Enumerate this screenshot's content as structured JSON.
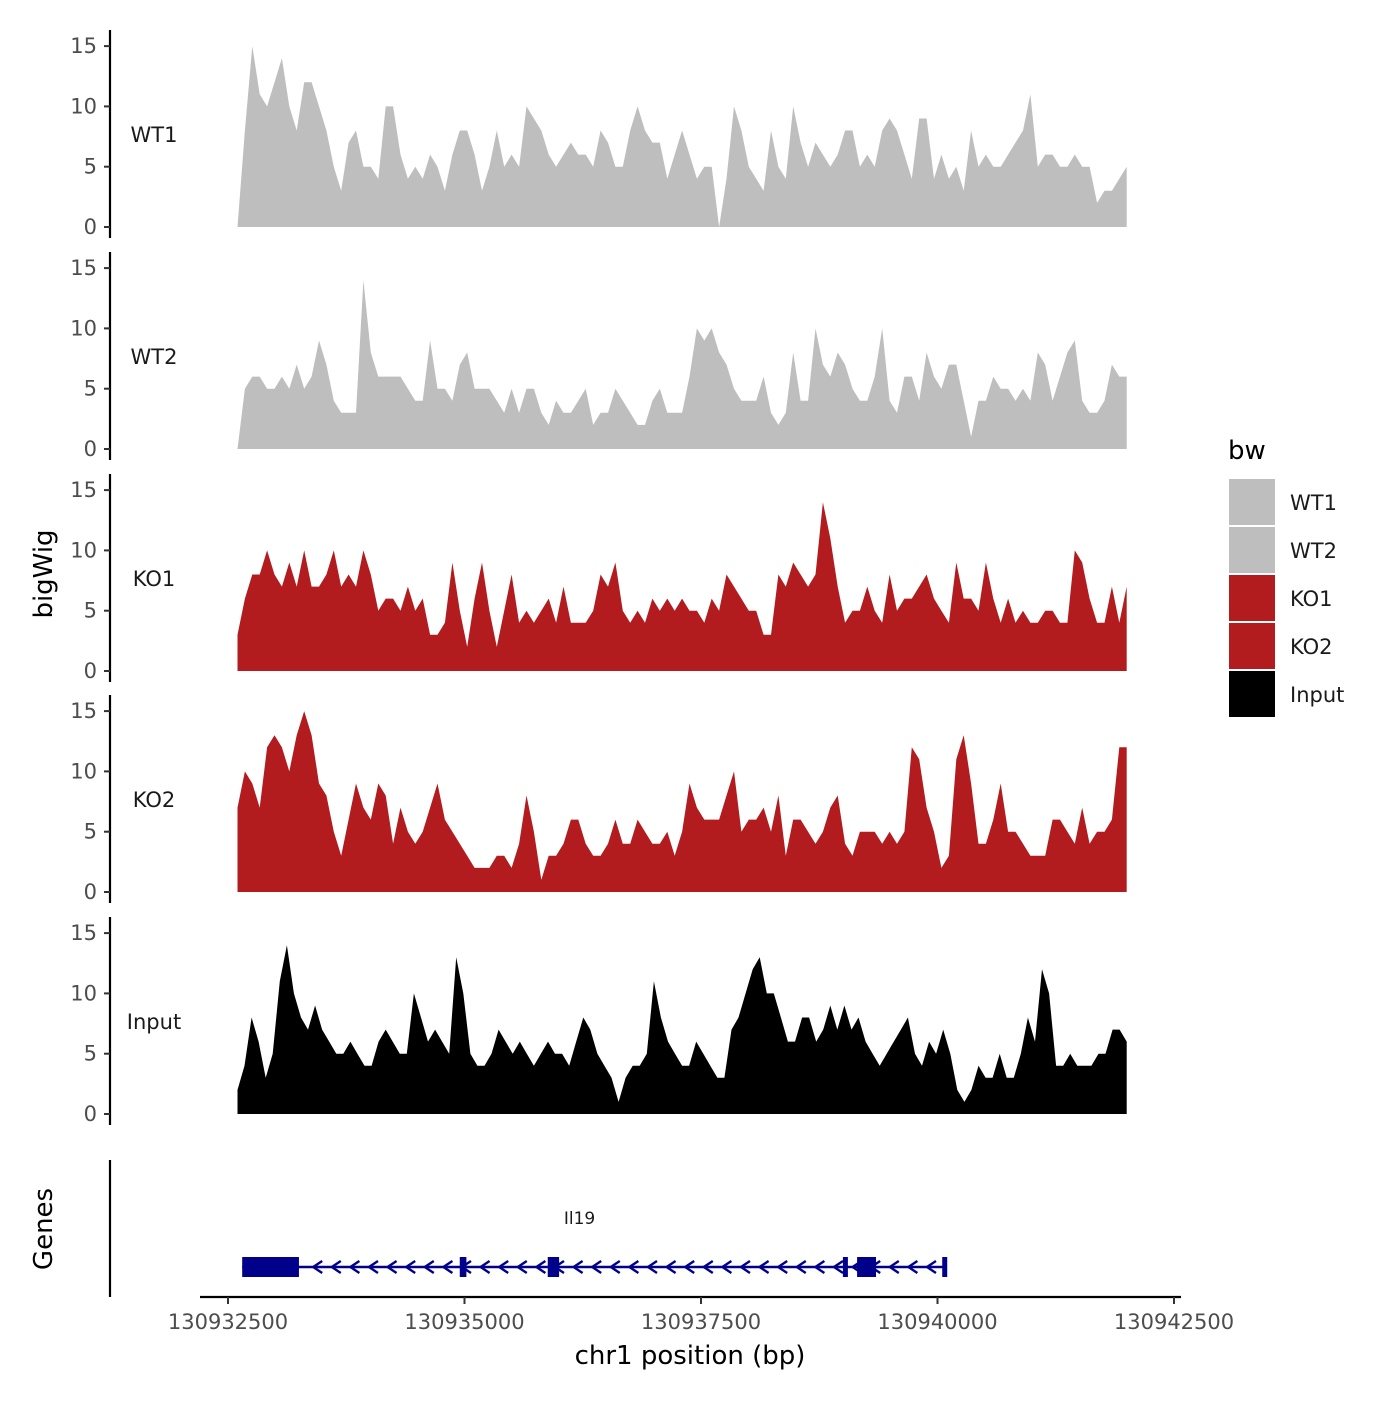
{
  "chart_data": {
    "type": "area",
    "ylabel": "bigWig",
    "xlabel": "chr1 position (bp)",
    "gene_panel_label": "Genes",
    "xlim": [
      130932100,
      130942200
    ],
    "x_ticks": [
      130932500,
      130935000,
      130937500,
      130940000,
      130942500
    ],
    "x_tick_labels": [
      "130932500",
      "130935000",
      "130937500",
      "130940000",
      "130942500"
    ],
    "ylim": [
      0,
      16
    ],
    "y_ticks": [
      0,
      5,
      10,
      15
    ],
    "y_tick_labels": [
      "0",
      "5",
      "10",
      "15"
    ],
    "legend": {
      "title": "bw",
      "entries": [
        {
          "name": "WT1",
          "color": "#BEBEBE"
        },
        {
          "name": "WT2",
          "color": "#BEBEBE"
        },
        {
          "name": "KO1",
          "color": "#B21C1F"
        },
        {
          "name": "KO2",
          "color": "#B21C1F"
        },
        {
          "name": "Input",
          "color": "#000000"
        }
      ]
    },
    "tracks": [
      {
        "name": "WT1",
        "color": "#BEBEBE",
        "x_start": 130932600,
        "x_end": 130942000,
        "values": [
          0,
          8,
          15,
          11,
          10,
          12,
          14,
          10,
          8,
          12,
          12,
          10,
          8,
          5,
          3,
          7,
          8,
          5,
          5,
          4,
          10,
          10,
          6,
          4,
          5,
          4,
          6,
          5,
          3,
          6,
          8,
          8,
          6,
          3,
          5,
          8,
          5,
          6,
          5,
          10,
          9,
          8,
          6,
          5,
          6,
          7,
          6,
          6,
          5,
          8,
          7,
          5,
          5,
          8,
          10,
          8,
          7,
          7,
          4,
          6,
          8,
          6,
          4,
          5,
          5,
          0,
          4,
          10,
          8,
          5,
          4,
          3,
          8,
          5,
          4,
          10,
          7,
          5,
          7,
          6,
          5,
          6,
          8,
          8,
          5,
          6,
          5,
          8,
          9,
          8,
          6,
          4,
          9,
          9,
          4,
          6,
          4,
          5,
          3,
          8,
          5,
          6,
          5,
          5,
          6,
          7,
          8,
          11,
          5,
          6,
          6,
          5,
          5,
          6,
          5,
          5,
          2,
          3,
          3,
          4,
          5
        ]
      },
      {
        "name": "WT2",
        "color": "#BEBEBE",
        "x_start": 130932600,
        "x_end": 130942000,
        "values": [
          0,
          5,
          6,
          6,
          5,
          5,
          6,
          5,
          7,
          5,
          6,
          9,
          7,
          4,
          3,
          3,
          3,
          14,
          8,
          6,
          6,
          6,
          6,
          5,
          4,
          4,
          9,
          5,
          5,
          4,
          7,
          8,
          5,
          5,
          5,
          4,
          3,
          5,
          3,
          5,
          5,
          3,
          2,
          4,
          3,
          3,
          4,
          5,
          2,
          3,
          3,
          5,
          4,
          3,
          2,
          2,
          4,
          5,
          3,
          3,
          3,
          6,
          10,
          9,
          10,
          8,
          7,
          5,
          4,
          4,
          4,
          6,
          3,
          2,
          3,
          8,
          4,
          4,
          10,
          7,
          6,
          8,
          7,
          5,
          4,
          4,
          6,
          10,
          4,
          3,
          6,
          6,
          4,
          8,
          6,
          5,
          7,
          7,
          4,
          1,
          4,
          4,
          6,
          5,
          5,
          4,
          5,
          4,
          8,
          7,
          4,
          6,
          8,
          9,
          4,
          3,
          3,
          4,
          7,
          6,
          6
        ]
      },
      {
        "name": "KO1",
        "color": "#B21C1F",
        "x_start": 130932600,
        "x_end": 130942000,
        "values": [
          3,
          6,
          8,
          8,
          10,
          8,
          7,
          9,
          7,
          10,
          7,
          7,
          8,
          10,
          7,
          8,
          7,
          10,
          8,
          5,
          6,
          6,
          5,
          7,
          5,
          6,
          3,
          3,
          4,
          9,
          5,
          2,
          6,
          9,
          5,
          2,
          5,
          8,
          4,
          5,
          4,
          5,
          6,
          4,
          7,
          4,
          4,
          4,
          5,
          8,
          7,
          9,
          5,
          4,
          5,
          4,
          6,
          5,
          6,
          5,
          6,
          5,
          5,
          4,
          6,
          5,
          8,
          7,
          6,
          5,
          5,
          3,
          3,
          8,
          7,
          9,
          8,
          7,
          8,
          14,
          11,
          7,
          4,
          5,
          5,
          7,
          5,
          4,
          8,
          5,
          6,
          6,
          7,
          8,
          6,
          5,
          4,
          9,
          6,
          6,
          5,
          9,
          6,
          4,
          6,
          4,
          5,
          4,
          4,
          5,
          5,
          4,
          4,
          10,
          9,
          6,
          4,
          4,
          7,
          4,
          7
        ]
      },
      {
        "name": "KO2",
        "color": "#B21C1F",
        "x_start": 130932600,
        "x_end": 130942000,
        "values": [
          7,
          10,
          9,
          7,
          12,
          13,
          12,
          10,
          13,
          15,
          13,
          9,
          8,
          5,
          3,
          6,
          9,
          7,
          6,
          9,
          8,
          4,
          7,
          5,
          4,
          5,
          7,
          9,
          6,
          5,
          4,
          3,
          2,
          2,
          2,
          3,
          3,
          2,
          4,
          8,
          5,
          1,
          3,
          3,
          4,
          6,
          6,
          4,
          3,
          3,
          4,
          6,
          4,
          4,
          6,
          5,
          4,
          4,
          5,
          3,
          5,
          9,
          7,
          6,
          6,
          6,
          8,
          10,
          5,
          6,
          6,
          7,
          5,
          8,
          3,
          6,
          6,
          5,
          4,
          5,
          7,
          8,
          4,
          3,
          5,
          5,
          5,
          4,
          5,
          4,
          5,
          12,
          11,
          7,
          5,
          2,
          3,
          11,
          13,
          9,
          4,
          4,
          6,
          9,
          5,
          5,
          4,
          3,
          3,
          3,
          6,
          6,
          5,
          4,
          7,
          4,
          5,
          5,
          6,
          12,
          12
        ]
      },
      {
        "name": "Input",
        "color": "#000000",
        "x_start": 130932600,
        "x_end": 130942000,
        "values": [
          2,
          4,
          8,
          6,
          3,
          5,
          11,
          14,
          10,
          8,
          7,
          9,
          7,
          6,
          5,
          5,
          6,
          5,
          4,
          4,
          6,
          7,
          6,
          5,
          5,
          10,
          8,
          6,
          7,
          6,
          5,
          13,
          10,
          5,
          4,
          4,
          5,
          7,
          6,
          5,
          6,
          5,
          4,
          5,
          6,
          5,
          5,
          4,
          6,
          8,
          7,
          5,
          4,
          3,
          1,
          3,
          4,
          4,
          5,
          11,
          8,
          6,
          5,
          4,
          4,
          6,
          5,
          4,
          3,
          3,
          7,
          8,
          10,
          12,
          13,
          10,
          10,
          8,
          6,
          6,
          8,
          8,
          6,
          7,
          9,
          7,
          9,
          7,
          8,
          6,
          5,
          4,
          5,
          6,
          7,
          8,
          5,
          4,
          6,
          5,
          7,
          5,
          2,
          1,
          2,
          4,
          3,
          3,
          5,
          3,
          3,
          5,
          8,
          6,
          12,
          10,
          4,
          4,
          5,
          4,
          4,
          4,
          5,
          5,
          7,
          7,
          6
        ]
      }
    ],
    "gene": {
      "name": "Il19",
      "color": "#00008B",
      "strand": "-",
      "start": 130932650,
      "end": 130940100,
      "exons": [
        [
          130932650,
          130933250
        ],
        [
          130934950,
          130935020
        ],
        [
          130935880,
          130936000
        ],
        [
          130939000,
          130939040
        ],
        [
          130939150,
          130939350
        ],
        [
          130940050,
          130940100
        ]
      ]
    }
  }
}
